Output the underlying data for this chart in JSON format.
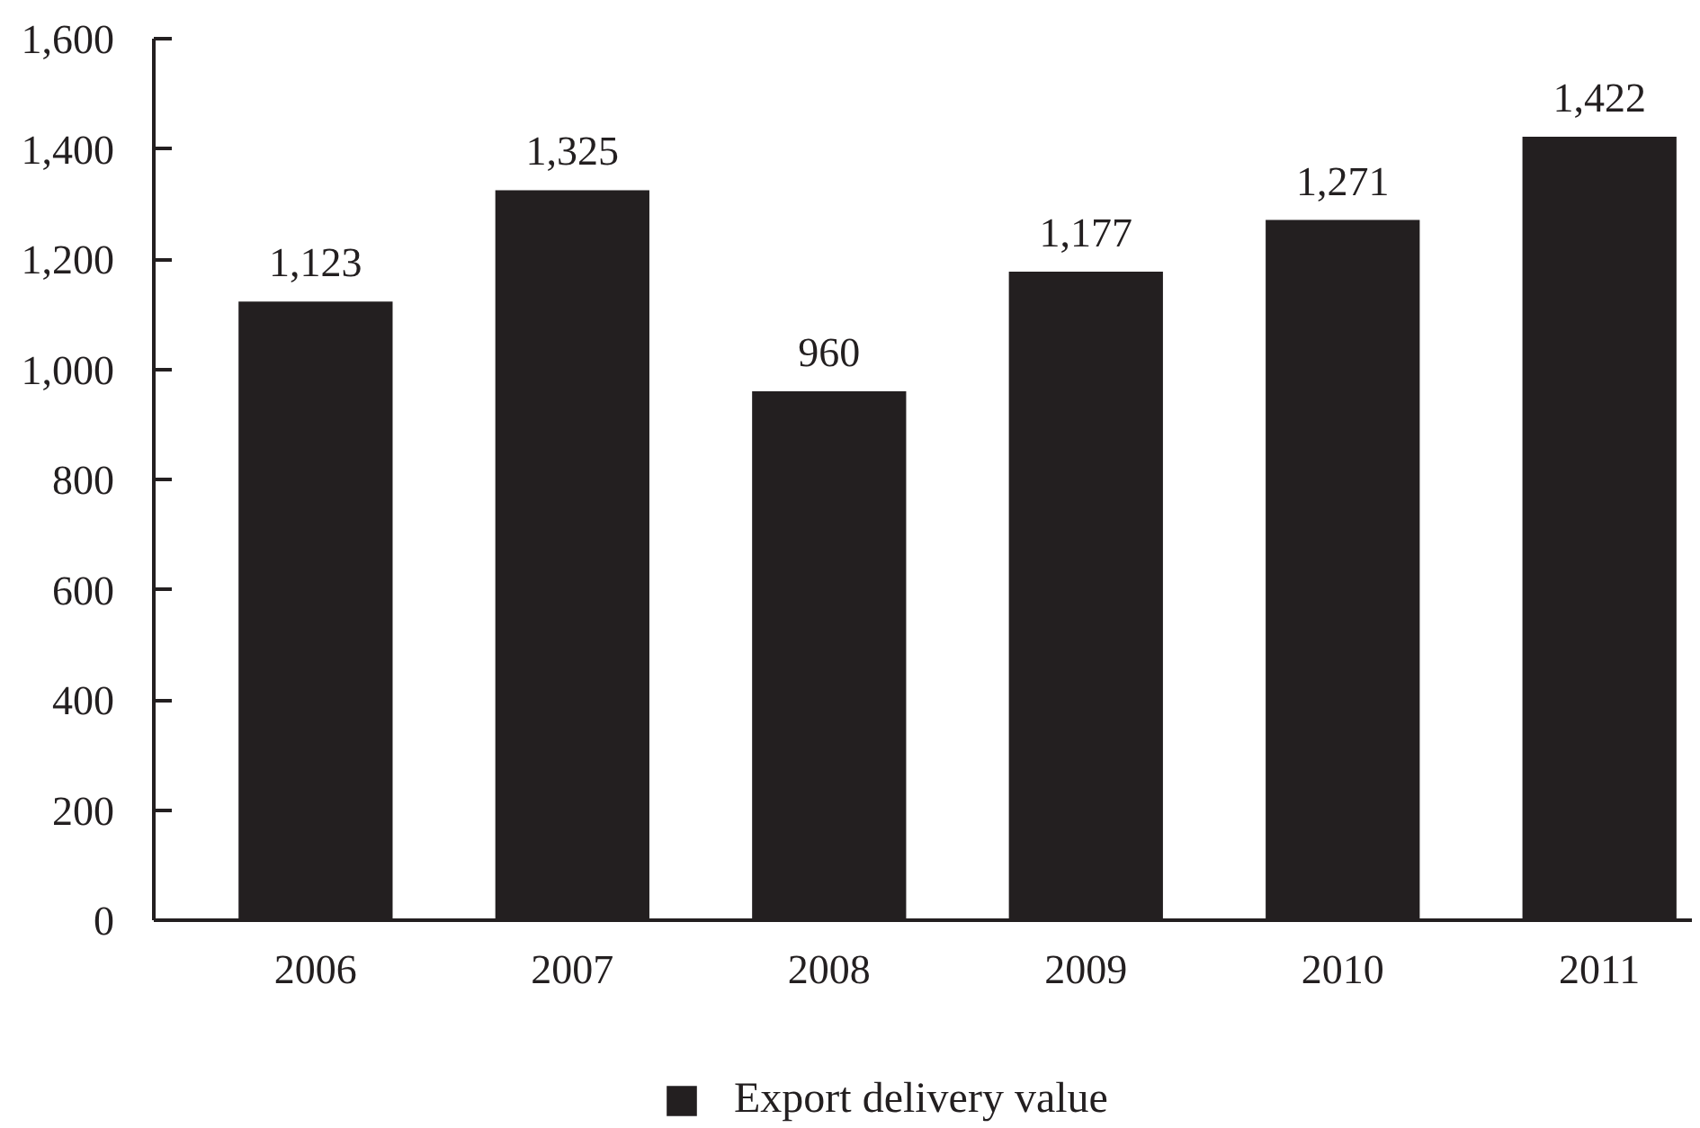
{
  "chart_data": {
    "type": "bar",
    "categories": [
      "2006",
      "2007",
      "2008",
      "2009",
      "2010",
      "2011"
    ],
    "series": [
      {
        "name": "Export delivery value",
        "color": "#231f20",
        "values": [
          1123,
          1325,
          960,
          1177,
          1271,
          1422
        ],
        "value_labels": [
          "1,123",
          "1,325",
          "960",
          "1,177",
          "1,271",
          "1,422"
        ]
      }
    ],
    "ylim": [
      0,
      1600
    ],
    "yticks": [
      0,
      200,
      400,
      600,
      800,
      {
        "value": 1000,
        "label": "1,000"
      },
      {
        "value": 1200,
        "label": "1,200"
      },
      {
        "value": 1400,
        "label": "1,400"
      },
      {
        "value": 1600,
        "label": "1,600"
      }
    ],
    "grid": false,
    "legend": "bottom"
  }
}
